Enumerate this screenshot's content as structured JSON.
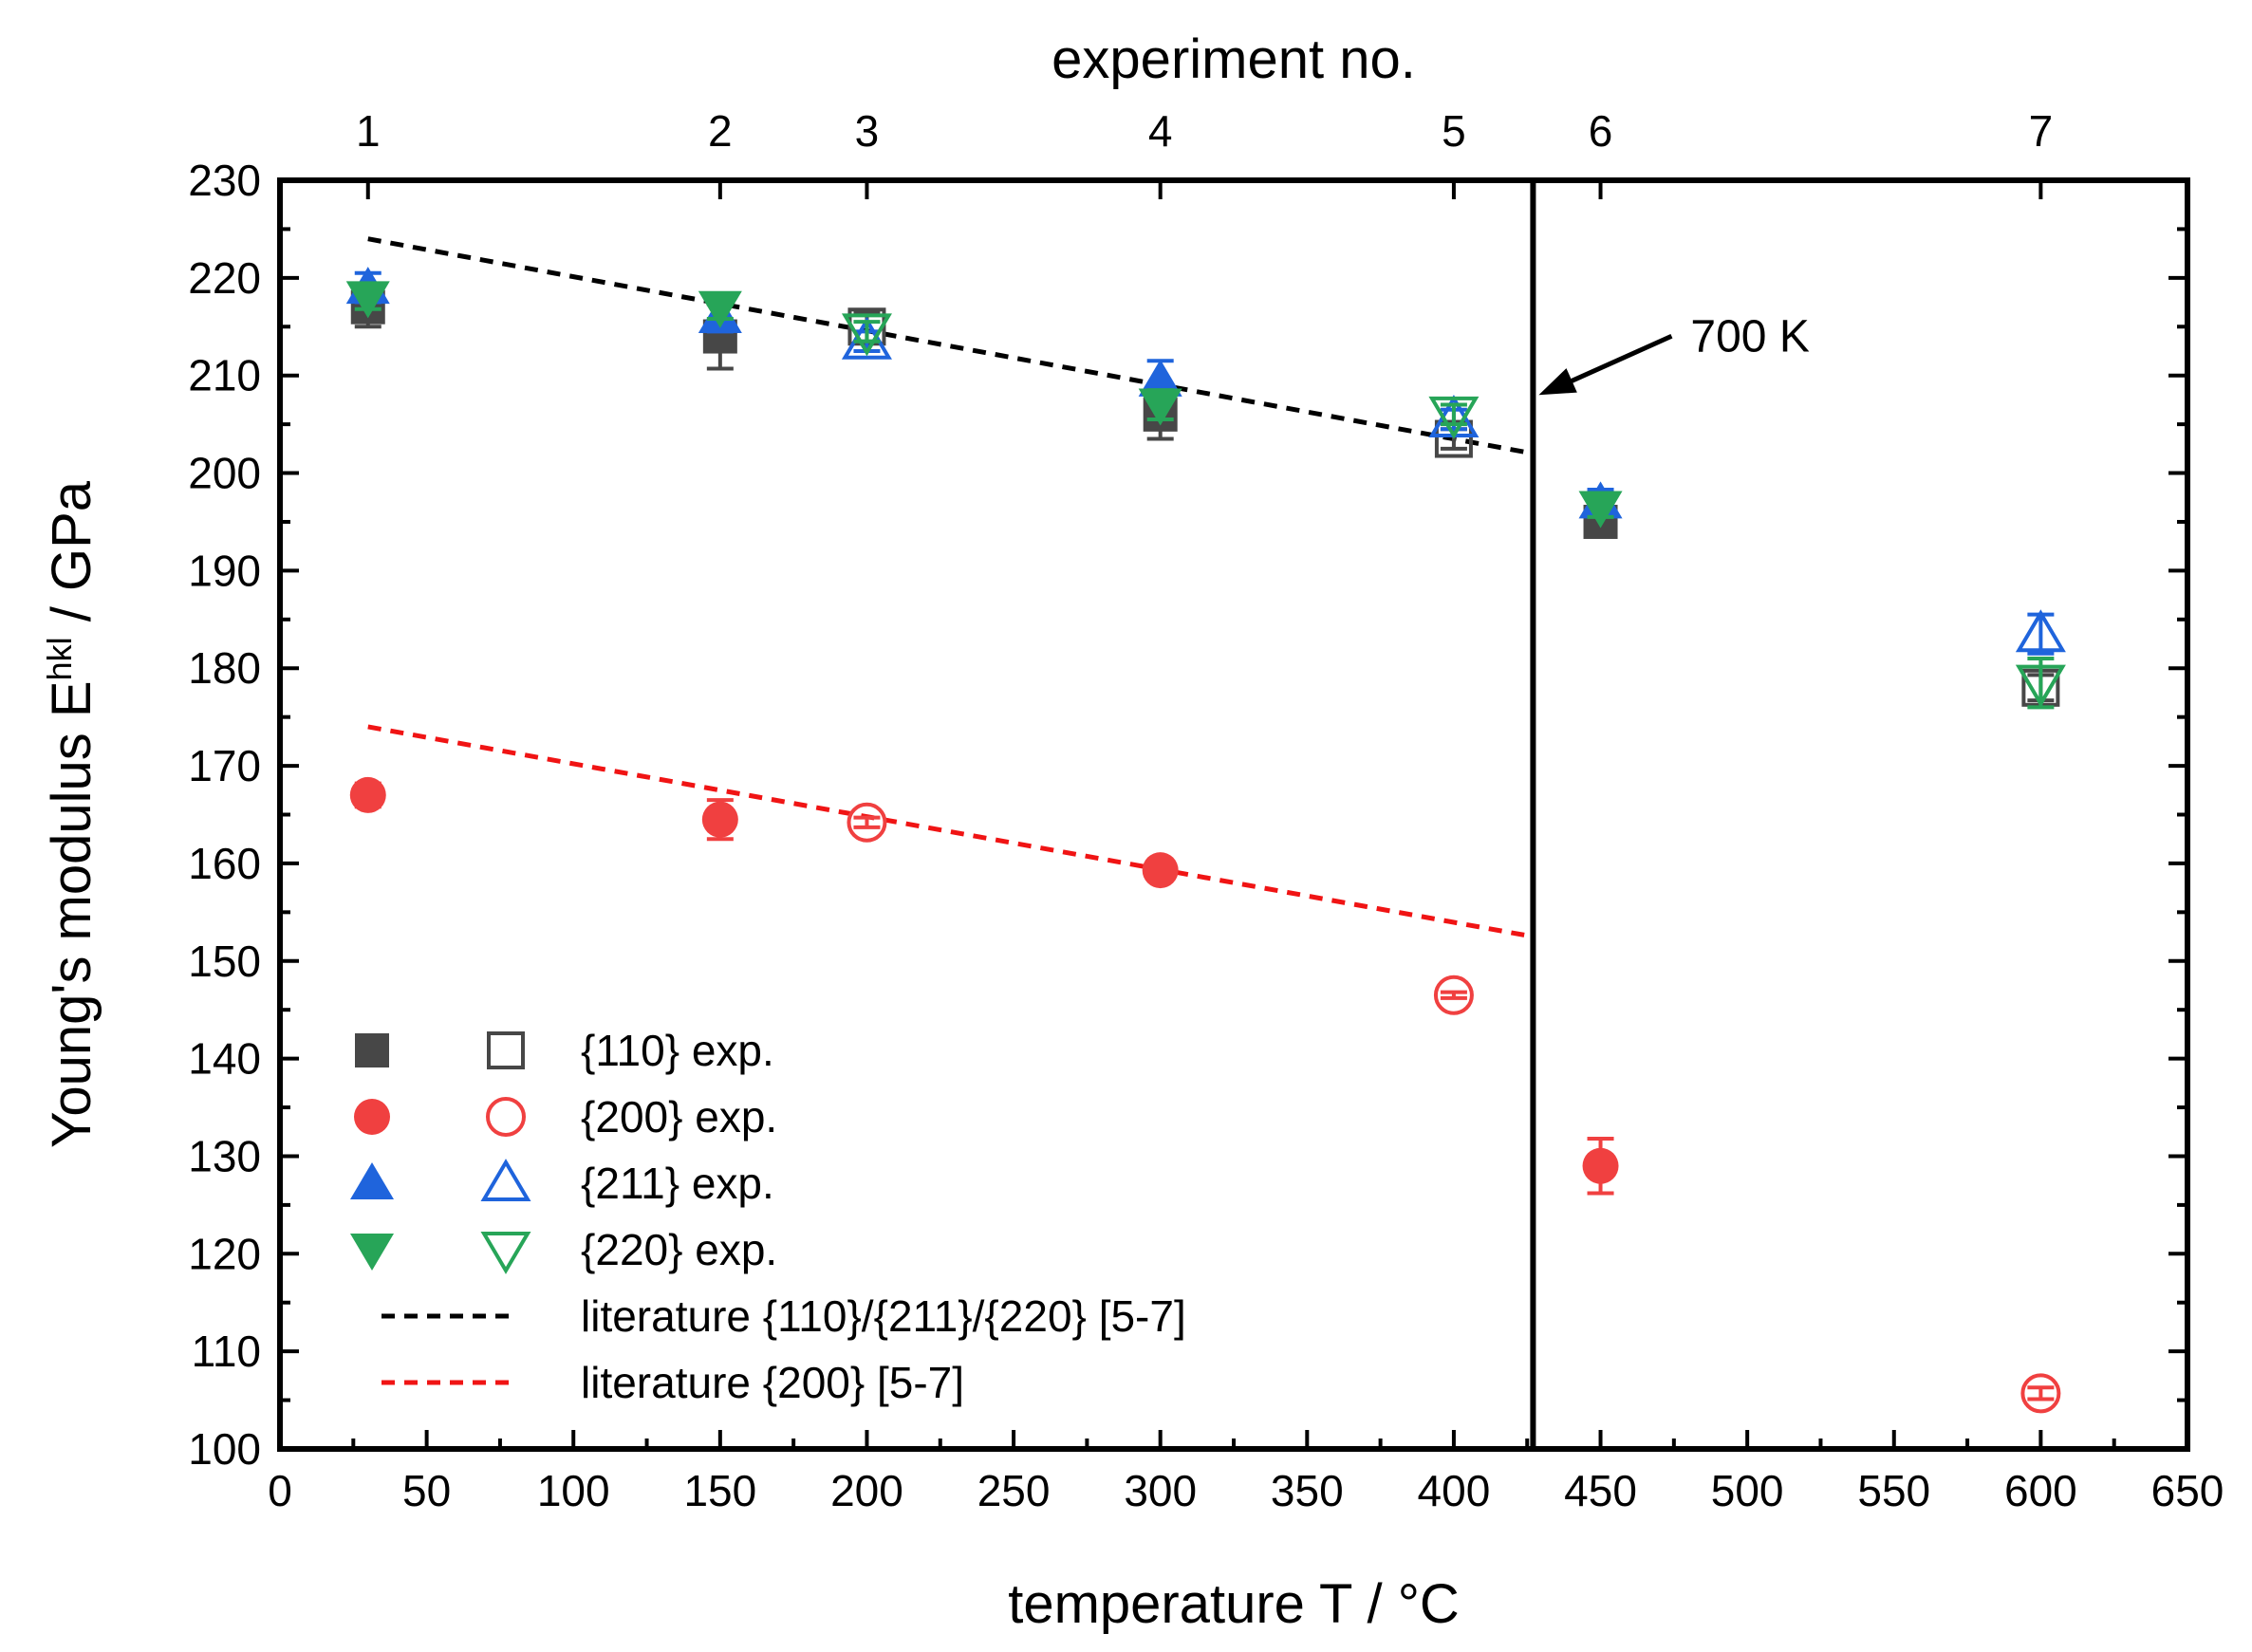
{
  "chart_data": {
    "type": "scatter",
    "title": "",
    "xlabel": "temperature T / °C",
    "ylabel_main": "Young's modulus E",
    "ylabel_sup": "hkl",
    "ylabel_tail": " / GPa",
    "top_xlabel": "experiment no.",
    "xlim": [
      0,
      650
    ],
    "ylim": [
      100,
      230
    ],
    "x_ticks": [
      0,
      50,
      100,
      150,
      200,
      250,
      300,
      350,
      400,
      450,
      500,
      550,
      600,
      650
    ],
    "y_ticks": [
      100,
      110,
      120,
      130,
      140,
      150,
      160,
      170,
      180,
      190,
      200,
      210,
      220,
      230
    ],
    "top_ticks": [
      {
        "x": 30,
        "label": "1"
      },
      {
        "x": 150,
        "label": "2"
      },
      {
        "x": 200,
        "label": "3"
      },
      {
        "x": 300,
        "label": "4"
      },
      {
        "x": 400,
        "label": "5"
      },
      {
        "x": 450,
        "label": "6"
      },
      {
        "x": 600,
        "label": "7"
      }
    ],
    "vertical_line_x": 427,
    "annotation": {
      "text": "700 K",
      "x": 427,
      "y": 208
    },
    "series": [
      {
        "name": "{110} exp.",
        "key": "s110",
        "color": "#474747",
        "marker": "square",
        "points": [
          {
            "x": 30,
            "y": 217,
            "err": 2,
            "filled": true
          },
          {
            "x": 150,
            "y": 214,
            "err": 3.3,
            "filled": true
          },
          {
            "x": 200,
            "y": 215,
            "err": 1.5,
            "filled": false
          },
          {
            "x": 300,
            "y": 206,
            "err": 2.5,
            "filled": true
          },
          {
            "x": 400,
            "y": 203.5,
            "err": 1,
            "filled": false
          },
          {
            "x": 450,
            "y": 195,
            "err": 1.2,
            "filled": true
          },
          {
            "x": 600,
            "y": 178,
            "err": 1.3,
            "filled": false
          }
        ]
      },
      {
        "name": "{200} exp.",
        "key": "s200",
        "color": "#f04040",
        "marker": "circle",
        "points": [
          {
            "x": 30,
            "y": 167,
            "err": 1.2,
            "filled": true
          },
          {
            "x": 150,
            "y": 164.5,
            "err": 2,
            "filled": true
          },
          {
            "x": 200,
            "y": 164.2,
            "err": 0.5,
            "filled": false
          },
          {
            "x": 300,
            "y": 159.3,
            "err": 0.8,
            "filled": true
          },
          {
            "x": 400,
            "y": 146.5,
            "err": 0.3,
            "filled": false
          },
          {
            "x": 450,
            "y": 129,
            "err": 2.8,
            "filled": true
          },
          {
            "x": 600,
            "y": 105.7,
            "err": 0.6,
            "filled": false
          }
        ]
      },
      {
        "name": "{211} exp.",
        "key": "s211",
        "color": "#1f64dc",
        "marker": "triangle-up",
        "points": [
          {
            "x": 30,
            "y": 219,
            "err": 1.5,
            "filled": true
          },
          {
            "x": 150,
            "y": 216,
            "err": 1.5,
            "filled": true
          },
          {
            "x": 200,
            "y": 213.5,
            "err": 1,
            "filled": false
          },
          {
            "x": 300,
            "y": 209.5,
            "err": 2,
            "filled": true
          },
          {
            "x": 400,
            "y": 205.5,
            "err": 1,
            "filled": false
          },
          {
            "x": 450,
            "y": 197,
            "err": 1.3,
            "filled": true
          },
          {
            "x": 600,
            "y": 183.5,
            "err": 2,
            "filled": false
          }
        ]
      },
      {
        "name": "{220} exp.",
        "key": "s220",
        "color": "#27a558",
        "marker": "triangle-down",
        "points": [
          {
            "x": 30,
            "y": 218,
            "err": 1.2,
            "filled": true
          },
          {
            "x": 150,
            "y": 217,
            "err": 1.2,
            "filled": true
          },
          {
            "x": 200,
            "y": 214.5,
            "err": 1,
            "filled": false
          },
          {
            "x": 300,
            "y": 207,
            "err": 1.5,
            "filled": true
          },
          {
            "x": 400,
            "y": 206,
            "err": 1,
            "filled": false
          },
          {
            "x": 450,
            "y": 196.5,
            "err": 1,
            "filled": true
          },
          {
            "x": 600,
            "y": 178.5,
            "err": 2.5,
            "filled": false
          }
        ]
      }
    ],
    "lines": [
      {
        "name": "literature {110}/{211}/{220} [5-7]",
        "color": "#000000",
        "dash": true,
        "points": [
          [
            30,
            224
          ],
          [
            427,
            202
          ]
        ]
      },
      {
        "name": "literature {200} [5-7]",
        "color": "#f01414",
        "dash": true,
        "points": [
          [
            30,
            174
          ],
          [
            427,
            152.5
          ]
        ]
      }
    ]
  }
}
